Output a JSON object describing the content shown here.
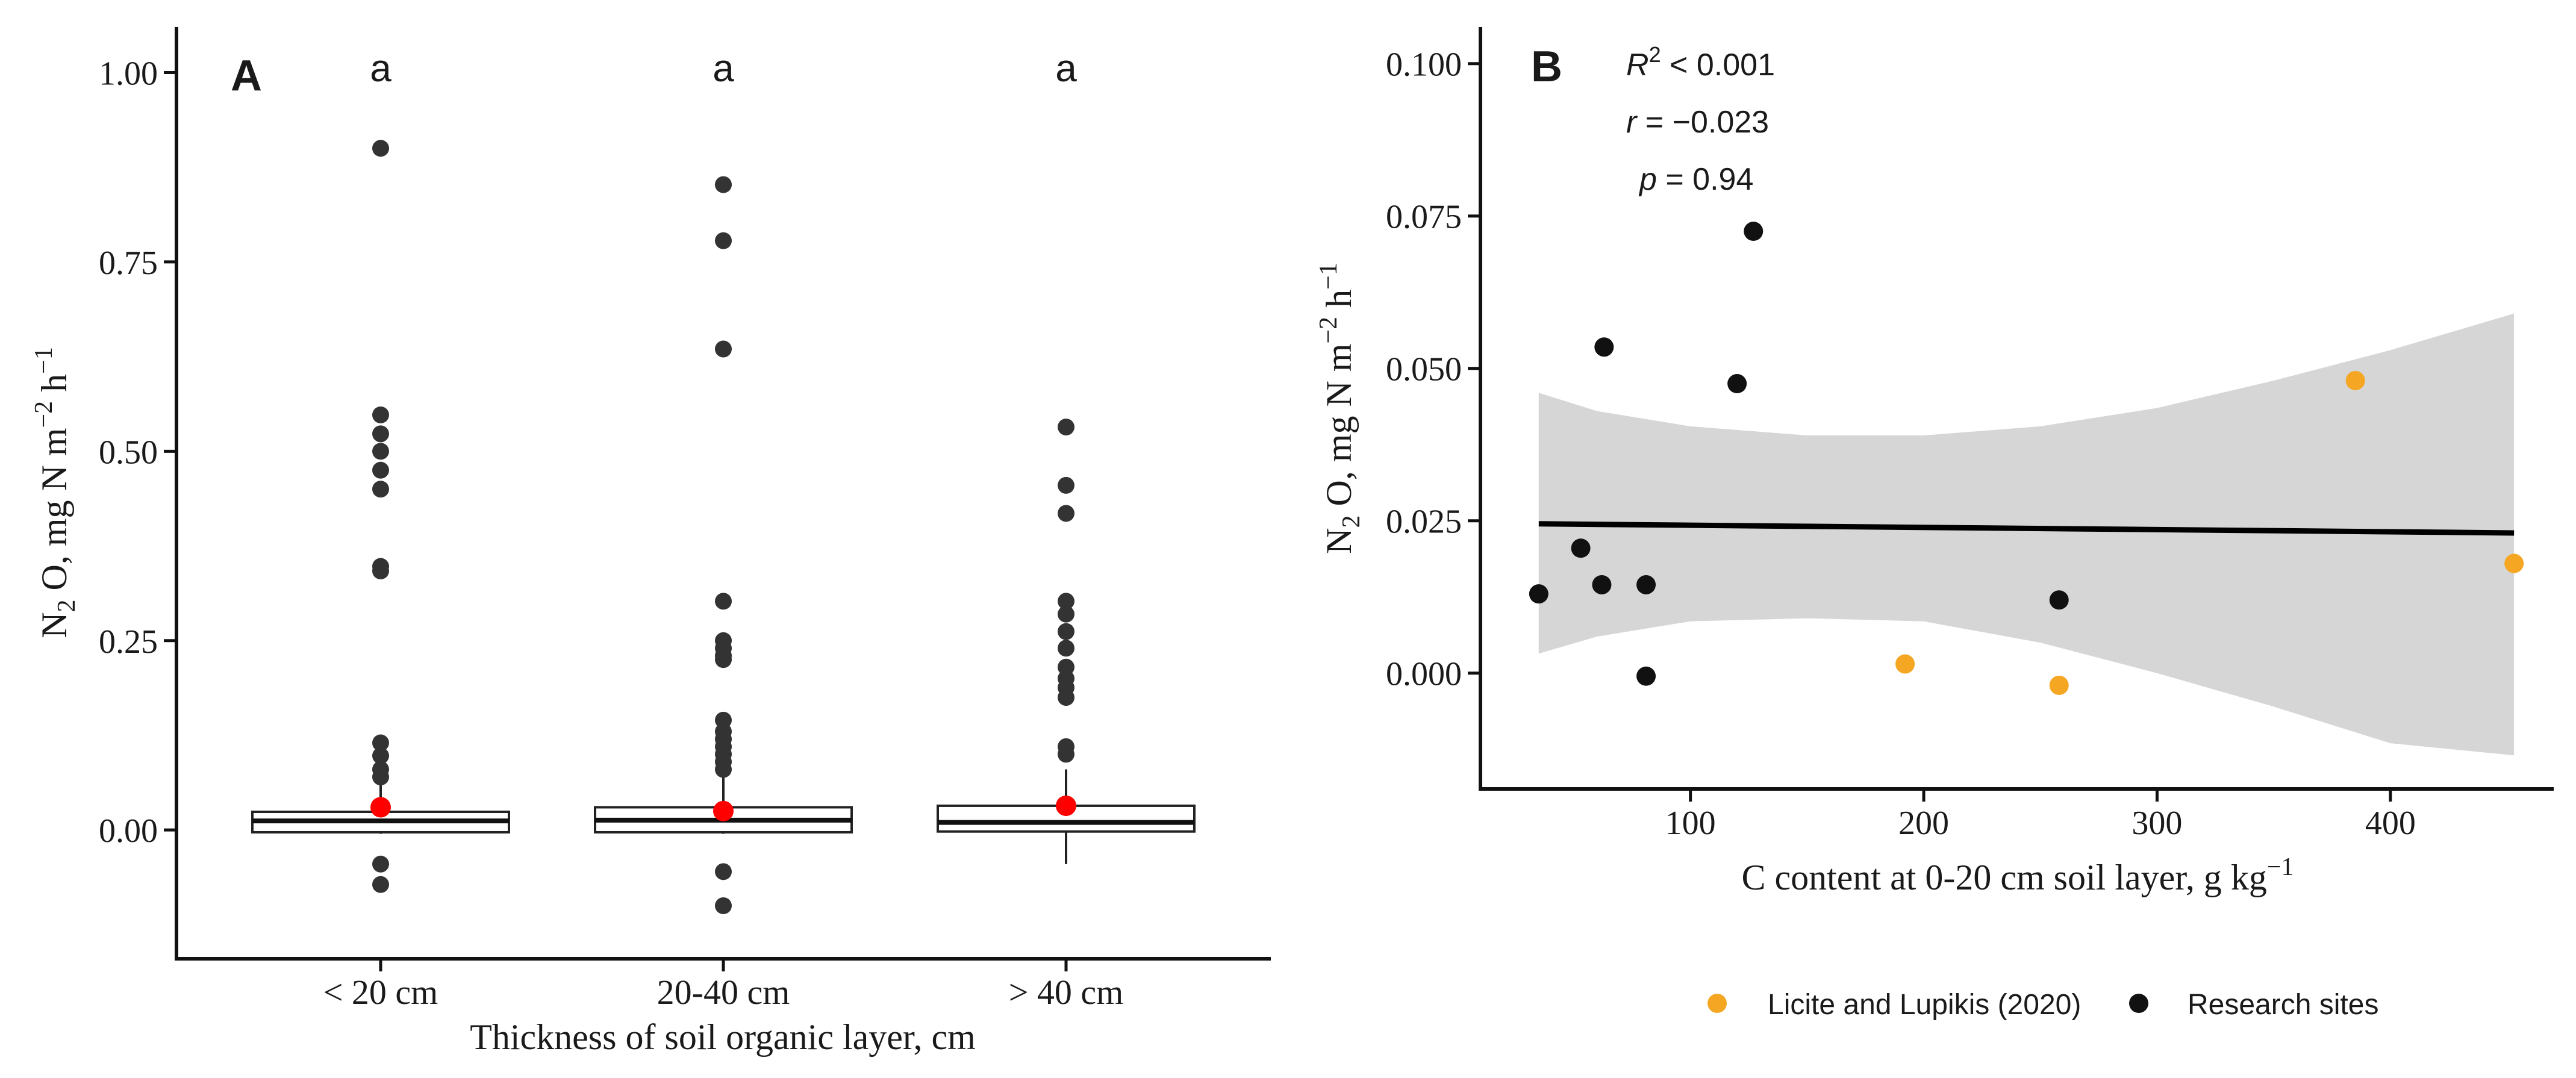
{
  "chart_data": [
    {
      "panel_label": "A",
      "type": "box",
      "categories": [
        "< 20 cm",
        "20-40 cm",
        "> 40 cm"
      ],
      "xlabel": "Thickness of soil organic layer, cm",
      "ylabel": {
        "main": "N",
        "sub1": "2",
        "mid": " O, mg N  m",
        "sup1": "−2",
        "mid2": " h",
        "sup2": "−1"
      },
      "ylim": [
        -0.17,
        1.06
      ],
      "yticks": [
        0.0,
        0.25,
        0.5,
        0.75,
        1.0
      ],
      "ytick_labels": [
        "0.00",
        "0.25",
        "0.50",
        "0.75",
        "1.00"
      ],
      "significance_letters": [
        "a",
        "a",
        "a"
      ],
      "boxes": [
        {
          "category": "< 20 cm",
          "whisker_low": -0.005,
          "q1": -0.003,
          "median": 0.012,
          "q3": 0.024,
          "whisker_high": 0.06,
          "mean": 0.03,
          "outliers": [
            0.9,
            0.548,
            0.523,
            0.5,
            0.475,
            0.45,
            0.348,
            0.342,
            0.115,
            0.098,
            0.08,
            0.07,
            -0.045,
            -0.072
          ]
        },
        {
          "category": "20-40 cm",
          "whisker_low": -0.005,
          "q1": -0.003,
          "median": 0.013,
          "q3": 0.03,
          "whisker_high": 0.07,
          "mean": 0.025,
          "outliers": [
            0.852,
            0.778,
            0.635,
            0.302,
            0.25,
            0.24,
            0.23,
            0.225,
            0.145,
            0.13,
            0.12,
            0.11,
            0.1,
            0.09,
            0.08,
            -0.055,
            -0.1
          ]
        },
        {
          "category": "> 40 cm",
          "whisker_low": -0.045,
          "q1": -0.002,
          "median": 0.01,
          "q3": 0.032,
          "whisker_high": 0.08,
          "mean": 0.032,
          "outliers": [
            0.532,
            0.455,
            0.418,
            0.302,
            0.285,
            0.262,
            0.24,
            0.215,
            0.2,
            0.188,
            0.175,
            0.11,
            0.1
          ]
        }
      ]
    },
    {
      "panel_label": "B",
      "type": "scatter",
      "xlabel": {
        "main": "C content at 0-20 cm soil layer, g kg",
        "sup": "−1"
      },
      "ylabel": {
        "main": "N",
        "sub1": "2",
        "mid": " O, mg N  m",
        "sup1": "−2",
        "mid2": " h",
        "sup2": "−1"
      },
      "xlim": [
        10,
        470
      ],
      "ylim": [
        -0.019,
        0.106
      ],
      "xticks": [
        100,
        200,
        300,
        400
      ],
      "xtick_labels": [
        "100",
        "200",
        "300",
        "400"
      ],
      "yticks": [
        0.0,
        0.025,
        0.05,
        0.075,
        0.1
      ],
      "ytick_labels": [
        "0.000",
        "0.025",
        "0.050",
        "0.075",
        "0.100"
      ],
      "stats": {
        "r2": {
          "symbol": "R",
          "sup": "2",
          "value": " < 0.001"
        },
        "r": {
          "symbol": "r",
          "value": " = −0.023"
        },
        "p": {
          "symbol": "p",
          "value": " = 0.94"
        }
      },
      "series": [
        {
          "name": "Licite and Lupikis (2020)",
          "color": "#f5a623",
          "points": [
            {
              "x": 192,
              "y": 0.0015
            },
            {
              "x": 258,
              "y": -0.002
            },
            {
              "x": 385,
              "y": 0.048
            },
            {
              "x": 453,
              "y": 0.018
            }
          ]
        },
        {
          "name": "Research sites",
          "color": "#111111",
          "points": [
            {
              "x": 35,
              "y": 0.013
            },
            {
              "x": 53,
              "y": 0.0205
            },
            {
              "x": 62,
              "y": 0.0145
            },
            {
              "x": 63,
              "y": 0.0535
            },
            {
              "x": 81,
              "y": 0.0145
            },
            {
              "x": 81,
              "y": -0.0005
            },
            {
              "x": 120,
              "y": 0.0475
            },
            {
              "x": 127,
              "y": 0.0725
            },
            {
              "x": 258,
              "y": 0.012
            }
          ]
        }
      ],
      "regression": {
        "x": [
          35,
          453
        ],
        "y": [
          0.0245,
          0.023
        ]
      },
      "confidence_band": {
        "x": [
          35,
          60,
          100,
          150,
          200,
          250,
          300,
          350,
          400,
          453
        ],
        "upper": [
          0.046,
          0.043,
          0.0405,
          0.039,
          0.039,
          0.0405,
          0.0435,
          0.048,
          0.053,
          0.059
        ],
        "lower": [
          0.0032,
          0.006,
          0.0085,
          0.009,
          0.0085,
          0.005,
          0.0,
          -0.0055,
          -0.0115,
          -0.0135
        ]
      }
    }
  ]
}
